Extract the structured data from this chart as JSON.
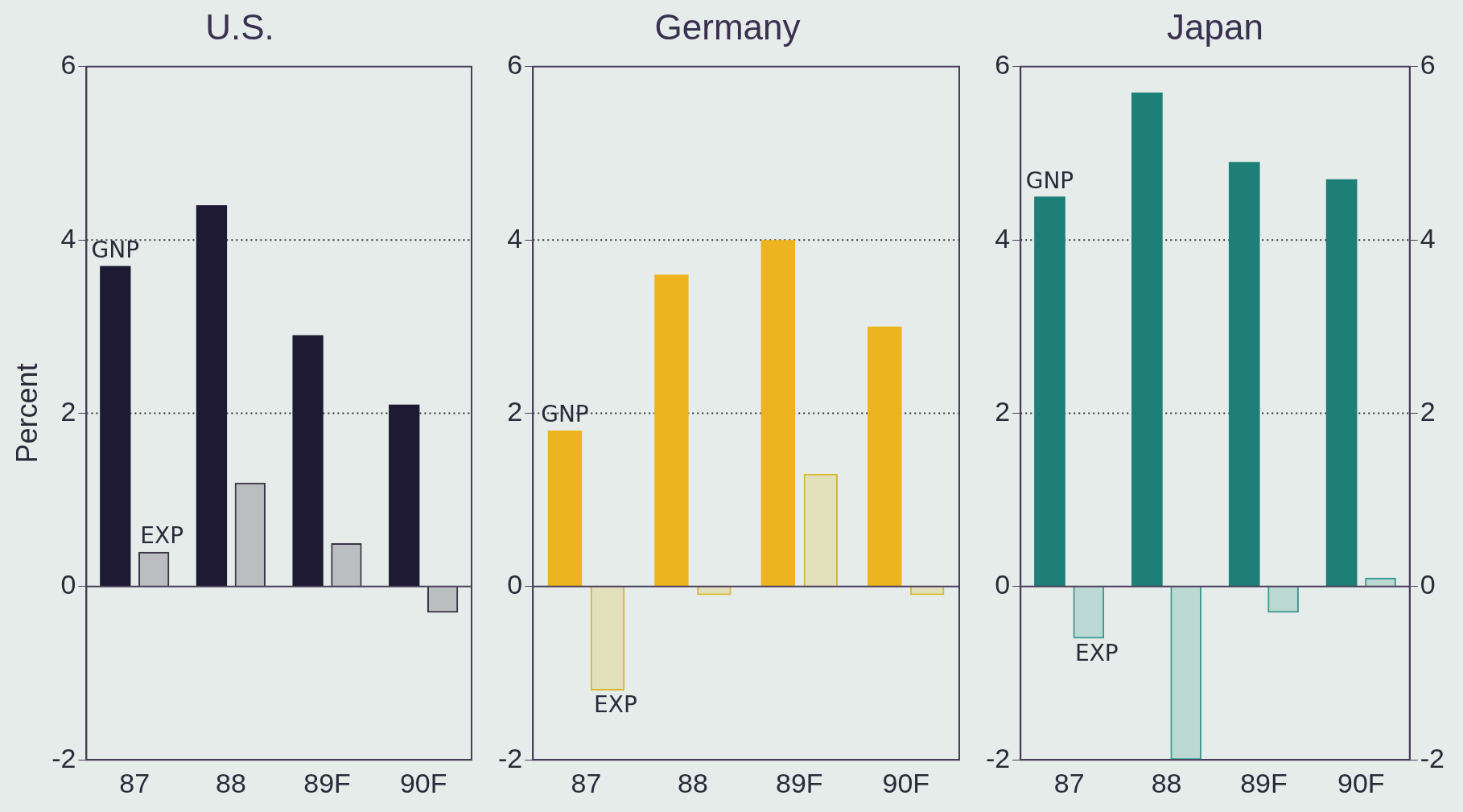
{
  "chart_data": [
    {
      "type": "bar",
      "title": "U.S.",
      "ylabel": "Percent",
      "categories": [
        "87",
        "88",
        "89F",
        "90F"
      ],
      "ylim": [
        -2,
        6
      ],
      "yticks": [
        -2,
        0,
        2,
        4,
        6
      ],
      "ref_lines": [
        {
          "axis": "y",
          "value": 2,
          "line_style": "dotted"
        },
        {
          "axis": "y",
          "value": 4,
          "line_style": "dotted"
        }
      ],
      "series": [
        {
          "name": "GNP",
          "color": "#1e1a33",
          "values": [
            3.7,
            4.4,
            2.9,
            2.1
          ]
        },
        {
          "name": "EXP",
          "color": "#3a3345",
          "values": [
            0.4,
            1.2,
            0.5,
            -0.3
          ]
        }
      ]
    },
    {
      "type": "bar",
      "title": "Germany",
      "categories": [
        "87",
        "88",
        "89F",
        "90F"
      ],
      "ylim": [
        -2,
        6
      ],
      "yticks": [
        -2,
        0,
        2,
        4,
        6
      ],
      "ref_lines": [
        {
          "axis": "y",
          "value": 2,
          "line_style": "dotted"
        },
        {
          "axis": "y",
          "value": 4,
          "line_style": "dotted"
        }
      ],
      "series": [
        {
          "name": "GNP",
          "color": "#eeb420",
          "values": [
            1.8,
            3.6,
            4.0,
            3.0
          ]
        },
        {
          "name": "EXP",
          "color": "#d8b830",
          "values": [
            -1.2,
            -0.1,
            1.3,
            -0.1
          ]
        }
      ]
    },
    {
      "type": "bar",
      "title": "Japan",
      "categories": [
        "87",
        "88",
        "89F",
        "90F"
      ],
      "ylim": [
        -2,
        6
      ],
      "yticks": [
        -2,
        0,
        2,
        4,
        6
      ],
      "y2lim": [
        -2,
        6
      ],
      "y2ticks": [
        -2,
        0,
        2,
        4,
        6
      ],
      "ref_lines": [
        {
          "axis": "y",
          "value": 2,
          "line_style": "dotted"
        },
        {
          "axis": "y",
          "value": 4,
          "line_style": "dotted"
        }
      ],
      "series": [
        {
          "name": "GNP",
          "color": "#1e7f78",
          "values": [
            4.5,
            5.7,
            4.9,
            4.7
          ]
        },
        {
          "name": "EXP",
          "color": "#3a9a90",
          "values": [
            -0.6,
            -2.0,
            -0.3,
            0.1
          ]
        }
      ]
    }
  ]
}
